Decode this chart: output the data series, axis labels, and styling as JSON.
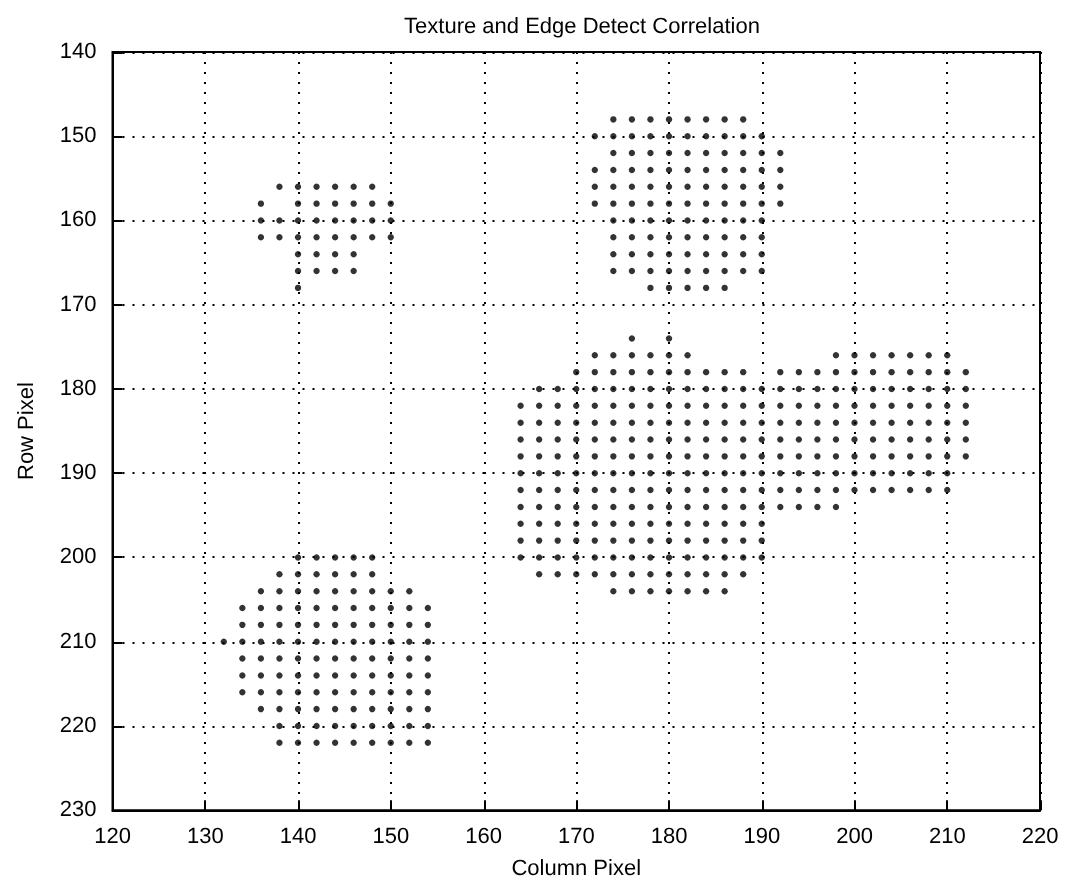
{
  "chart_data": {
    "type": "scatter",
    "title": "Texture and Edge Detect Correlation",
    "xlabel": "Column Pixel",
    "ylabel": "Row Pixel",
    "xlim": [
      120,
      220
    ],
    "xticks": [
      120,
      130,
      140,
      150,
      160,
      170,
      180,
      190,
      200,
      210,
      220
    ],
    "ylim": [
      230,
      140
    ],
    "yticks": [
      140,
      150,
      160,
      170,
      180,
      190,
      200,
      210,
      220,
      230
    ],
    "grid": true,
    "marker": "circle",
    "series": [
      {
        "color": "#000000",
        "x": [
          138,
          140,
          142,
          144,
          146,
          148,
          136,
          140,
          142,
          144,
          146,
          148,
          150,
          136,
          138,
          140,
          142,
          144,
          146,
          148,
          150,
          136,
          138,
          140,
          142,
          144,
          146,
          148,
          150,
          140,
          142,
          144,
          146,
          140,
          142,
          144,
          146,
          140
        ],
        "values": [
          156,
          156,
          156,
          156,
          156,
          156,
          158,
          158,
          158,
          158,
          158,
          158,
          158,
          160,
          160,
          160,
          160,
          160,
          160,
          160,
          160,
          162,
          162,
          162,
          162,
          162,
          162,
          162,
          162,
          164,
          164,
          164,
          164,
          166,
          166,
          166,
          166,
          168
        ]
      },
      {
        "color": "#000000",
        "x": [
          174,
          176,
          178,
          180,
          182,
          184,
          186,
          188,
          172,
          174,
          176,
          178,
          180,
          182,
          184,
          186,
          188,
          190,
          174,
          176,
          178,
          180,
          182,
          184,
          186,
          188,
          190,
          192,
          172,
          174,
          176,
          178,
          180,
          182,
          184,
          186,
          188,
          190,
          192,
          172,
          174,
          176,
          178,
          180,
          182,
          184,
          186,
          188,
          190,
          192,
          172,
          174,
          176,
          178,
          180,
          182,
          184,
          186,
          188,
          190,
          192,
          174,
          176,
          178,
          180,
          182,
          184,
          186,
          188,
          190,
          174,
          176,
          178,
          180,
          182,
          184,
          186,
          188,
          190,
          174,
          176,
          178,
          180,
          182,
          184,
          186,
          188,
          190,
          174,
          176,
          178,
          180,
          182,
          184,
          186,
          188,
          190,
          178,
          180,
          182,
          184,
          186
        ],
        "values": [
          148,
          148,
          148,
          148,
          148,
          148,
          148,
          148,
          150,
          150,
          150,
          150,
          150,
          150,
          150,
          150,
          150,
          150,
          152,
          152,
          152,
          152,
          152,
          152,
          152,
          152,
          152,
          152,
          154,
          154,
          154,
          154,
          154,
          154,
          154,
          154,
          154,
          154,
          154,
          156,
          156,
          156,
          156,
          156,
          156,
          156,
          156,
          156,
          156,
          156,
          158,
          158,
          158,
          158,
          158,
          158,
          158,
          158,
          158,
          158,
          158,
          160,
          160,
          160,
          160,
          160,
          160,
          160,
          160,
          160,
          162,
          162,
          162,
          162,
          162,
          162,
          162,
          162,
          162,
          164,
          164,
          164,
          164,
          164,
          164,
          164,
          164,
          164,
          166,
          166,
          166,
          166,
          166,
          166,
          166,
          166,
          166,
          168,
          168,
          168,
          168,
          168
        ]
      },
      {
        "color": "#000000",
        "x": [
          176,
          180,
          172,
          174,
          176,
          178,
          180,
          182,
          198,
          200,
          202,
          204,
          206,
          208,
          210,
          170,
          172,
          174,
          176,
          178,
          180,
          182,
          184,
          186,
          188,
          192,
          194,
          196,
          198,
          200,
          202,
          204,
          206,
          208,
          210,
          212,
          166,
          168,
          170,
          172,
          174,
          176,
          178,
          180,
          182,
          184,
          186,
          188,
          190,
          192,
          194,
          196,
          198,
          200,
          202,
          204,
          206,
          208,
          210,
          212,
          164,
          166,
          168,
          170,
          172,
          174,
          176,
          178,
          180,
          182,
          184,
          186,
          188,
          190,
          192,
          194,
          196,
          198,
          200,
          202,
          204,
          206,
          208,
          210,
          212,
          164,
          166,
          168,
          170,
          172,
          174,
          176,
          178,
          180,
          182,
          184,
          186,
          188,
          190,
          192,
          194,
          196,
          198,
          200,
          202,
          204,
          206,
          208,
          210,
          212,
          164,
          166,
          168,
          170,
          172,
          174,
          176,
          178,
          180,
          182,
          184,
          186,
          188,
          190,
          192,
          194,
          196,
          198,
          200,
          202,
          204,
          206,
          208,
          210,
          212,
          164,
          166,
          168,
          170,
          172,
          174,
          176,
          178,
          180,
          182,
          184,
          186,
          188,
          190,
          192,
          194,
          196,
          198,
          200,
          202,
          204,
          206,
          208,
          210,
          212
        ],
        "values": [
          174,
          174,
          176,
          176,
          176,
          176,
          176,
          176,
          176,
          176,
          176,
          176,
          176,
          176,
          176,
          178,
          178,
          178,
          178,
          178,
          178,
          178,
          178,
          178,
          178,
          178,
          178,
          178,
          178,
          178,
          178,
          178,
          178,
          178,
          178,
          178,
          180,
          180,
          180,
          180,
          180,
          180,
          180,
          180,
          180,
          180,
          180,
          180,
          180,
          180,
          180,
          180,
          180,
          180,
          180,
          180,
          180,
          180,
          180,
          180,
          182,
          182,
          182,
          182,
          182,
          182,
          182,
          182,
          182,
          182,
          182,
          182,
          182,
          182,
          182,
          182,
          182,
          182,
          182,
          182,
          182,
          182,
          182,
          182,
          182,
          184,
          184,
          184,
          184,
          184,
          184,
          184,
          184,
          184,
          184,
          184,
          184,
          184,
          184,
          184,
          184,
          184,
          184,
          184,
          184,
          184,
          184,
          184,
          184,
          184,
          186,
          186,
          186,
          186,
          186,
          186,
          186,
          186,
          186,
          186,
          186,
          186,
          186,
          186,
          186,
          186,
          186,
          186,
          186,
          186,
          186,
          186,
          186,
          186,
          186,
          188,
          188,
          188,
          188,
          188,
          188,
          188,
          188,
          188,
          188,
          188,
          188,
          188,
          188,
          188,
          188,
          188,
          188,
          188,
          188,
          188,
          188,
          188,
          188,
          188
        ]
      },
      {
        "color": "#000000",
        "x": [
          164,
          166,
          168,
          170,
          172,
          174,
          176,
          178,
          180,
          182,
          184,
          186,
          188,
          190,
          192,
          194,
          196,
          198,
          200,
          202,
          204,
          206,
          208,
          210,
          164,
          166,
          168,
          170,
          172,
          174,
          176,
          178,
          180,
          182,
          184,
          186,
          188,
          190,
          192,
          194,
          196,
          198,
          200,
          202,
          204,
          206,
          208,
          210,
          164,
          166,
          168,
          170,
          172,
          174,
          176,
          178,
          180,
          182,
          184,
          186,
          188,
          190,
          192,
          194,
          196,
          198,
          164,
          166,
          168,
          170,
          172,
          174,
          176,
          178,
          180,
          182,
          184,
          186,
          188,
          190,
          164,
          166,
          168,
          170,
          172,
          174,
          176,
          178,
          180,
          182,
          184,
          186,
          188,
          190,
          164,
          166,
          168,
          170,
          172,
          174,
          176,
          178,
          180,
          182,
          184,
          186,
          188,
          190,
          166,
          168,
          170,
          172,
          174,
          176,
          178,
          180,
          182,
          184,
          186,
          188,
          174,
          176,
          178,
          180,
          182,
          184,
          186
        ],
        "values": [
          190,
          190,
          190,
          190,
          190,
          190,
          190,
          190,
          190,
          190,
          190,
          190,
          190,
          190,
          190,
          190,
          190,
          190,
          190,
          190,
          190,
          190,
          190,
          190,
          192,
          192,
          192,
          192,
          192,
          192,
          192,
          192,
          192,
          192,
          192,
          192,
          192,
          192,
          192,
          192,
          192,
          192,
          192,
          192,
          192,
          192,
          192,
          192,
          194,
          194,
          194,
          194,
          194,
          194,
          194,
          194,
          194,
          194,
          194,
          194,
          194,
          194,
          194,
          194,
          194,
          194,
          196,
          196,
          196,
          196,
          196,
          196,
          196,
          196,
          196,
          196,
          196,
          196,
          196,
          196,
          198,
          198,
          198,
          198,
          198,
          198,
          198,
          198,
          198,
          198,
          198,
          198,
          198,
          198,
          200,
          200,
          200,
          200,
          200,
          200,
          200,
          200,
          200,
          200,
          200,
          200,
          200,
          200,
          202,
          202,
          202,
          202,
          202,
          202,
          202,
          202,
          202,
          202,
          202,
          202,
          204,
          204,
          204,
          204,
          204,
          204,
          204
        ]
      },
      {
        "color": "#000000",
        "x": [
          140,
          142,
          144,
          146,
          148,
          138,
          140,
          142,
          144,
          146,
          148,
          136,
          138,
          140,
          142,
          144,
          146,
          148,
          150,
          152,
          134,
          136,
          138,
          140,
          142,
          144,
          146,
          148,
          150,
          152,
          154,
          134,
          136,
          138,
          140,
          142,
          144,
          146,
          148,
          150,
          152,
          154,
          132,
          134,
          136,
          138,
          140,
          142,
          144,
          146,
          148,
          150,
          152,
          154,
          134,
          136,
          138,
          140,
          142,
          144,
          146,
          148,
          150,
          152,
          154,
          134,
          136,
          138,
          140,
          142,
          144,
          146,
          148,
          150,
          152,
          154,
          134,
          136,
          138,
          140,
          142,
          144,
          146,
          148,
          150,
          152,
          154,
          136,
          138,
          140,
          142,
          144,
          146,
          148,
          150,
          152,
          154,
          138,
          140,
          142,
          144,
          146,
          148,
          150,
          152,
          154,
          138,
          140,
          142,
          144,
          146,
          148,
          150,
          152,
          154
        ],
        "values": [
          200,
          200,
          200,
          200,
          200,
          202,
          202,
          202,
          202,
          202,
          202,
          204,
          204,
          204,
          204,
          204,
          204,
          204,
          204,
          204,
          206,
          206,
          206,
          206,
          206,
          206,
          206,
          206,
          206,
          206,
          206,
          208,
          208,
          208,
          208,
          208,
          208,
          208,
          208,
          208,
          208,
          208,
          210,
          210,
          210,
          210,
          210,
          210,
          210,
          210,
          210,
          210,
          210,
          210,
          212,
          212,
          212,
          212,
          212,
          212,
          212,
          212,
          212,
          212,
          212,
          214,
          214,
          214,
          214,
          214,
          214,
          214,
          214,
          214,
          214,
          214,
          216,
          216,
          216,
          216,
          216,
          216,
          216,
          216,
          216,
          216,
          216,
          218,
          218,
          218,
          218,
          218,
          218,
          218,
          218,
          218,
          218,
          220,
          220,
          220,
          220,
          220,
          220,
          220,
          220,
          220,
          222,
          222,
          222,
          222,
          222,
          222,
          222,
          222,
          222
        ]
      }
    ]
  }
}
